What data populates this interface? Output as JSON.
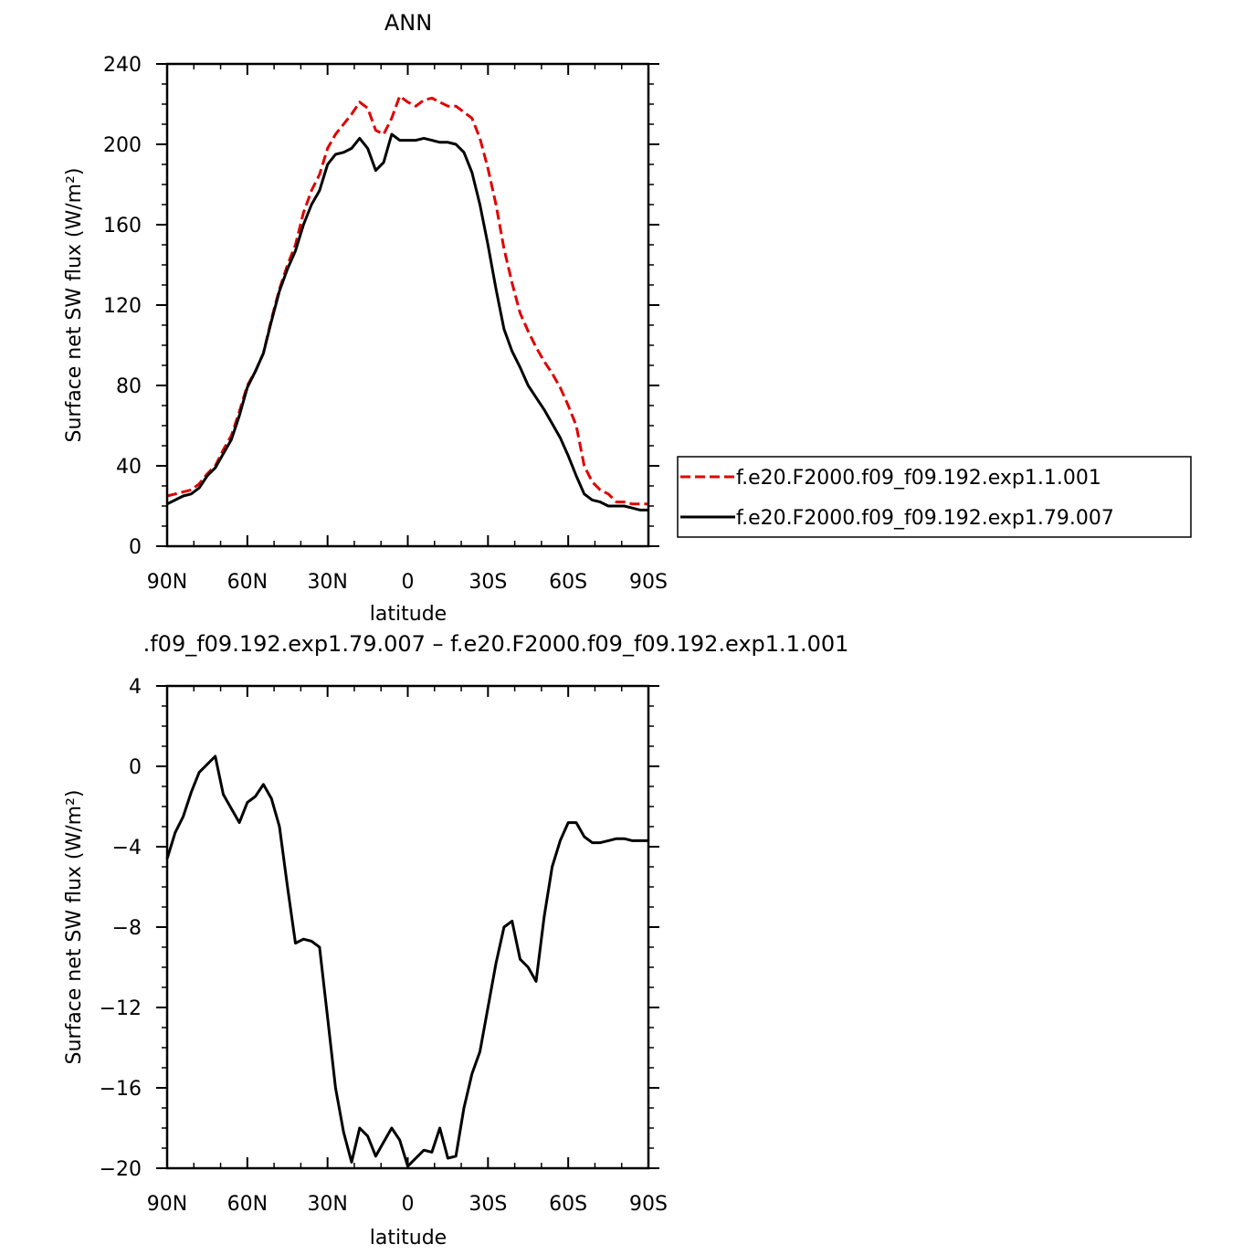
{
  "chart_data": [
    {
      "type": "line",
      "title": "ANN",
      "xlabel": "latitude",
      "ylabel": "Surface net SW flux (W/m²)",
      "ylim": [
        0,
        240
      ],
      "xlim": [
        90,
        -90
      ],
      "yticks": [
        0,
        40,
        80,
        120,
        160,
        200,
        240
      ],
      "xticks": [
        90,
        60,
        30,
        0,
        -30,
        -60,
        -90
      ],
      "xtick_labels": [
        "90N",
        "60N",
        "30N",
        "0",
        "30S",
        "60S",
        "90S"
      ],
      "grid": false,
      "legend": "right",
      "x": [
        90,
        87,
        84,
        81,
        78,
        75,
        72,
        69,
        66,
        63,
        60,
        57,
        54,
        51,
        48,
        45,
        42,
        39,
        36,
        33,
        30,
        27,
        24,
        21,
        18,
        15,
        12,
        9,
        6,
        3,
        0,
        -3,
        -6,
        -9,
        -12,
        -15,
        -18,
        -21,
        -24,
        -27,
        -30,
        -33,
        -36,
        -39,
        -42,
        -45,
        -48,
        -51,
        -54,
        -57,
        -60,
        -63,
        -66,
        -69,
        -72,
        -75,
        -78,
        -81,
        -84,
        -87,
        -90
      ],
      "series": [
        {
          "name": "f.e20.F2000.f09_f09.192.exp1.1.001",
          "color": "#e00000",
          "style": "dashed",
          "values": [
            25,
            26,
            27,
            28,
            31,
            36,
            40,
            48,
            55,
            67,
            80,
            87,
            96,
            113,
            128,
            140,
            150,
            166,
            177,
            185,
            198,
            205,
            210,
            215,
            221,
            218,
            207,
            205,
            213,
            224,
            221,
            219,
            222,
            223,
            221,
            219,
            219,
            216,
            213,
            203,
            188,
            170,
            148,
            131,
            116,
            107,
            99,
            92,
            86,
            79,
            70,
            60,
            40,
            32,
            28,
            26,
            22,
            22,
            21,
            21,
            21
          ]
        },
        {
          "name": "f.e20.F2000.f09_f09.192.exp1.79.007",
          "color": "#000000",
          "style": "solid",
          "values": [
            21,
            23,
            25,
            26,
            29,
            35,
            39,
            46,
            53,
            65,
            79,
            87,
            96,
            112,
            127,
            138,
            147,
            160,
            170,
            177,
            190,
            195,
            196,
            198,
            203,
            198,
            187,
            191,
            205,
            202,
            202,
            202,
            203,
            202,
            201,
            201,
            200,
            196,
            186,
            170,
            150,
            128,
            108,
            97,
            89,
            80,
            74,
            68,
            61,
            54,
            45,
            35,
            26,
            23,
            22,
            20,
            20,
            20,
            19,
            18,
            18
          ]
        }
      ]
    },
    {
      "type": "line",
      "title": ".f09_f09.192.exp1.79.007 – f.e20.F2000.f09_f09.192.exp1.1.001",
      "xlabel": "latitude",
      "ylabel": "Surface net SW flux (W/m²)",
      "ylim": [
        -20,
        4
      ],
      "xlim": [
        90,
        -90
      ],
      "yticks": [
        -20,
        -16,
        -12,
        -8,
        -4,
        0,
        4
      ],
      "xticks": [
        90,
        60,
        30,
        0,
        -30,
        -60,
        -90
      ],
      "xtick_labels": [
        "90N",
        "60N",
        "30N",
        "0",
        "30S",
        "60S",
        "90S"
      ],
      "grid": false,
      "x": [
        90,
        87,
        84,
        81,
        78,
        75,
        72,
        69,
        66,
        63,
        60,
        57,
        54,
        51,
        48,
        45,
        42,
        39,
        36,
        33,
        30,
        27,
        24,
        21,
        18,
        15,
        12,
        9,
        6,
        3,
        0,
        -3,
        -6,
        -9,
        -12,
        -15,
        -18,
        -21,
        -24,
        -27,
        -30,
        -33,
        -36,
        -39,
        -42,
        -45,
        -48,
        -51,
        -54,
        -57,
        -60,
        -63,
        -66,
        -69,
        -72,
        -75,
        -78,
        -81,
        -84,
        -87,
        -90
      ],
      "series": [
        {
          "color": "#000000",
          "style": "solid",
          "values": [
            -4.6,
            -3.3,
            -2.5,
            -1.3,
            -0.3,
            0.1,
            0.5,
            -1.4,
            -2.1,
            -2.8,
            -1.8,
            -1.5,
            -0.9,
            -1.6,
            -3.0,
            -6.0,
            -8.8,
            -8.6,
            -8.7,
            -9.0,
            -12.5,
            -16.0,
            -18.2,
            -19.7,
            -18.0,
            -18.4,
            -19.4,
            -18.7,
            -18.0,
            -18.6,
            -19.9,
            -19.5,
            -19.1,
            -19.2,
            -18.0,
            -19.5,
            -19.4,
            -17.0,
            -15.3,
            -14.2,
            -12.0,
            -9.8,
            -8.0,
            -7.7,
            -9.6,
            -10.0,
            -10.7,
            -7.5,
            -5.0,
            -3.7,
            -2.8,
            -2.8,
            -3.5,
            -3.8,
            -3.8,
            -3.7,
            -3.6,
            -3.6,
            -3.7,
            -3.7,
            -3.7
          ]
        }
      ]
    }
  ]
}
